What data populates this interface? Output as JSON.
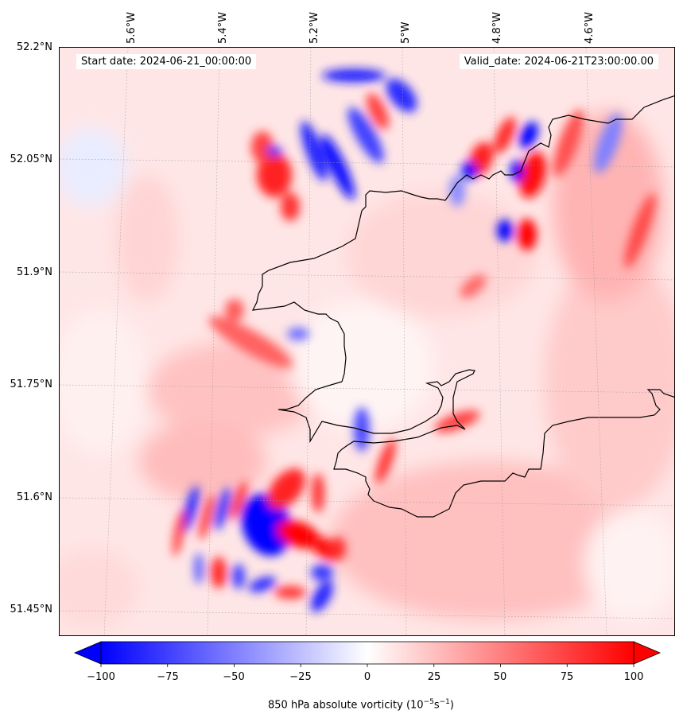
{
  "map": {
    "start_date": "Start date: 2024-06-21_00:00:00",
    "valid_date": "Valid_date: 2024-06-21T23:00:00.00",
    "lat_labels": [
      "52.2°N",
      "52.05°N",
      "51.9°N",
      "51.75°N",
      "51.6°N",
      "51.45°N"
    ],
    "lon_labels": [
      "5.6°W",
      "5.4°W",
      "5.2°W",
      "5°W",
      "4.8°W",
      "4.6°W"
    ],
    "variable": "850 hPa absolute vorticity",
    "colormap": "bwr",
    "colors": {
      "negative": "#0000ff",
      "neutral": "#ffffff",
      "positive": "#ff0000",
      "coastline": "#000000",
      "gridline": "#aaaaaa"
    }
  },
  "colorbar": {
    "ticks": [
      "−100",
      "−75",
      "−50",
      "−25",
      "0",
      "25",
      "50",
      "75",
      "100"
    ],
    "label": "850 hPa absolute vorticity (10",
    "label_exp1": "−5",
    "label_mid": "s",
    "label_exp2": "−1",
    "label_end": ")",
    "min": -100,
    "max": 100,
    "extend": "both"
  }
}
